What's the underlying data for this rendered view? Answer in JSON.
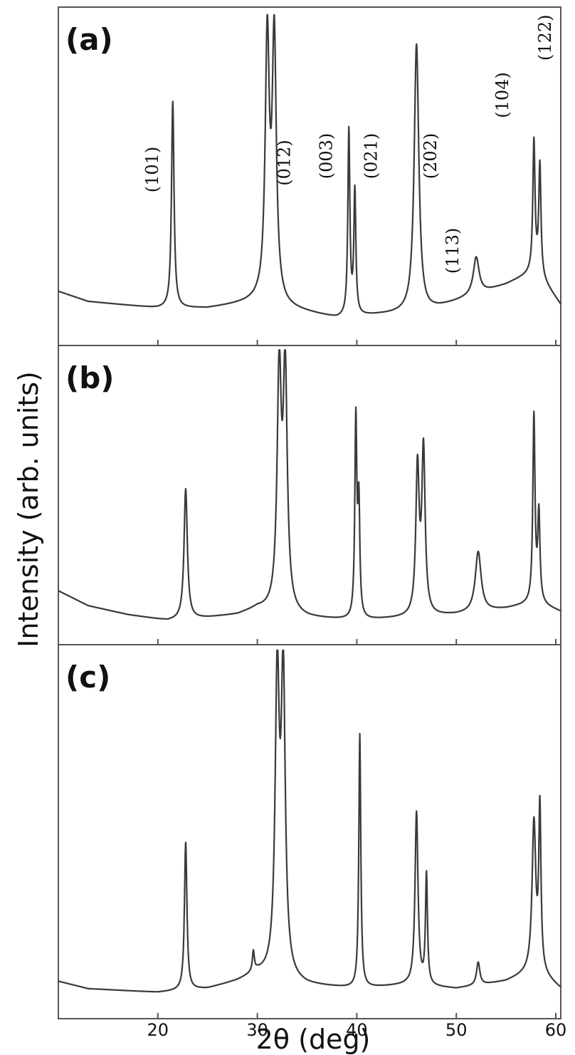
{
  "chart_data": {
    "type": "line",
    "xlabel": "2θ (deg)",
    "ylabel": "Intensity (arb. units)",
    "xlim": [
      10,
      60.5
    ],
    "x_ticks": [
      20,
      30,
      40,
      50,
      60
    ],
    "ylim": [
      0,
      1
    ],
    "grid": false,
    "panels": [
      {
        "label": "(a)",
        "background": [
          [
            10,
            0.16
          ],
          [
            13,
            0.13
          ],
          [
            20,
            0.11
          ],
          [
            25,
            0.11
          ],
          [
            30,
            0.13
          ],
          [
            33,
            0.11
          ],
          [
            38,
            0.08
          ],
          [
            42,
            0.09
          ],
          [
            47,
            0.1
          ],
          [
            50,
            0.13
          ],
          [
            55,
            0.18
          ],
          [
            58,
            0.22
          ],
          [
            60.5,
            0.12
          ]
        ],
        "peaks": [
          {
            "x": 21.5,
            "y": 0.72,
            "w": 0.15
          },
          {
            "x": 31.0,
            "y": 0.89,
            "w": 0.25
          },
          {
            "x": 31.7,
            "y": 0.89,
            "w": 0.25
          },
          {
            "x": 39.2,
            "y": 0.63,
            "w": 0.12
          },
          {
            "x": 39.8,
            "y": 0.45,
            "w": 0.12
          },
          {
            "x": 46.0,
            "y": 0.89,
            "w": 0.28
          },
          {
            "x": 52.0,
            "y": 0.26,
            "w": 0.35
          },
          {
            "x": 57.8,
            "y": 0.6,
            "w": 0.13
          },
          {
            "x": 58.4,
            "y": 0.53,
            "w": 0.13
          }
        ],
        "annotations": [
          {
            "text": "(101)",
            "x": 20.0,
            "y": 0.52
          },
          {
            "text": "(012)",
            "x": 33.3,
            "y": 0.54
          },
          {
            "text": "(003)",
            "x": 37.5,
            "y": 0.56
          },
          {
            "text": "(021)",
            "x": 42.0,
            "y": 0.56
          },
          {
            "text": "(202)",
            "x": 48.0,
            "y": 0.56
          },
          {
            "text": "(113)",
            "x": 50.2,
            "y": 0.28
          },
          {
            "text": "(104)",
            "x": 55.2,
            "y": 0.74
          },
          {
            "text": "(122)",
            "x": 59.5,
            "y": 0.91
          }
        ]
      },
      {
        "label": "(b)",
        "background": [
          [
            10,
            0.18
          ],
          [
            13,
            0.13
          ],
          [
            17,
            0.1
          ],
          [
            21,
            0.08
          ],
          [
            25,
            0.09
          ],
          [
            28,
            0.1
          ],
          [
            30,
            0.12
          ],
          [
            35,
            0.09
          ],
          [
            40,
            0.08
          ],
          [
            45,
            0.09
          ],
          [
            50,
            0.1
          ],
          [
            55,
            0.12
          ],
          [
            58,
            0.14
          ],
          [
            60.5,
            0.11
          ]
        ],
        "peaks": [
          {
            "x": 22.8,
            "y": 0.52,
            "w": 0.2
          },
          {
            "x": 32.2,
            "y": 0.89,
            "w": 0.25
          },
          {
            "x": 32.8,
            "y": 0.89,
            "w": 0.25
          },
          {
            "x": 39.9,
            "y": 0.74,
            "w": 0.12
          },
          {
            "x": 40.2,
            "y": 0.45,
            "w": 0.12
          },
          {
            "x": 46.1,
            "y": 0.58,
            "w": 0.2
          },
          {
            "x": 46.7,
            "y": 0.64,
            "w": 0.2
          },
          {
            "x": 52.2,
            "y": 0.31,
            "w": 0.35
          },
          {
            "x": 57.8,
            "y": 0.76,
            "w": 0.13
          },
          {
            "x": 58.3,
            "y": 0.43,
            "w": 0.13
          }
        ],
        "annotations": []
      },
      {
        "label": "(c)",
        "background": [
          [
            10,
            0.1
          ],
          [
            13,
            0.08
          ],
          [
            20,
            0.07
          ],
          [
            25,
            0.08
          ],
          [
            28,
            0.1
          ],
          [
            30,
            0.12
          ],
          [
            35,
            0.09
          ],
          [
            40,
            0.08
          ],
          [
            45,
            0.09
          ],
          [
            50,
            0.08
          ],
          [
            55,
            0.1
          ],
          [
            58,
            0.13
          ],
          [
            60.5,
            0.08
          ]
        ],
        "peaks": [
          {
            "x": 22.8,
            "y": 0.47,
            "w": 0.15
          },
          {
            "x": 29.6,
            "y": 0.17,
            "w": 0.12
          },
          {
            "x": 32.0,
            "y": 0.89,
            "w": 0.25
          },
          {
            "x": 32.6,
            "y": 0.89,
            "w": 0.25
          },
          {
            "x": 40.3,
            "y": 0.76,
            "w": 0.12
          },
          {
            "x": 46.0,
            "y": 0.55,
            "w": 0.18
          },
          {
            "x": 47.0,
            "y": 0.38,
            "w": 0.12
          },
          {
            "x": 52.2,
            "y": 0.15,
            "w": 0.2
          },
          {
            "x": 57.8,
            "y": 0.52,
            "w": 0.22
          },
          {
            "x": 58.4,
            "y": 0.55,
            "w": 0.13
          }
        ],
        "annotations": []
      }
    ]
  }
}
